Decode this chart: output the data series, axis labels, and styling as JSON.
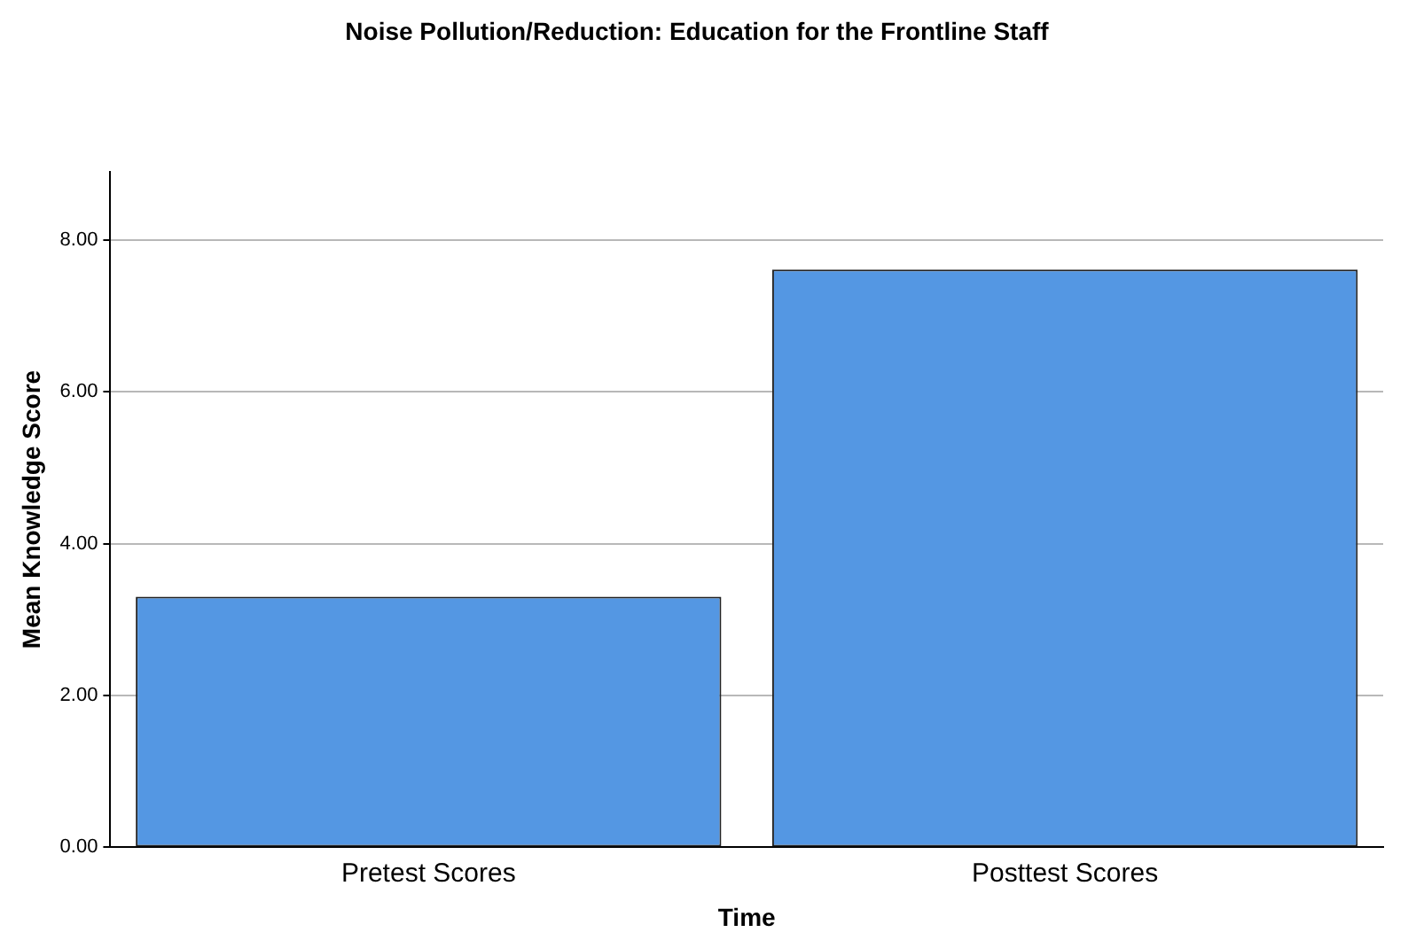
{
  "chart_data": {
    "type": "bar",
    "title": "Noise Pollution/Reduction: Education for the Frontline Staff",
    "xlabel": "Time",
    "ylabel": "Mean Knowledge Score",
    "categories": [
      "Pretest Scores",
      "Posttest Scores"
    ],
    "values": [
      3.3,
      7.61
    ],
    "color": "#5497e3",
    "ylim": [
      0,
      8.9
    ],
    "yticks": [
      {
        "value": 0,
        "label": "0.00"
      },
      {
        "value": 2,
        "label": "2.00"
      },
      {
        "value": 4,
        "label": "4.00"
      },
      {
        "value": 6,
        "label": "6.00"
      },
      {
        "value": 8,
        "label": "8.00"
      }
    ],
    "grid": "y"
  }
}
